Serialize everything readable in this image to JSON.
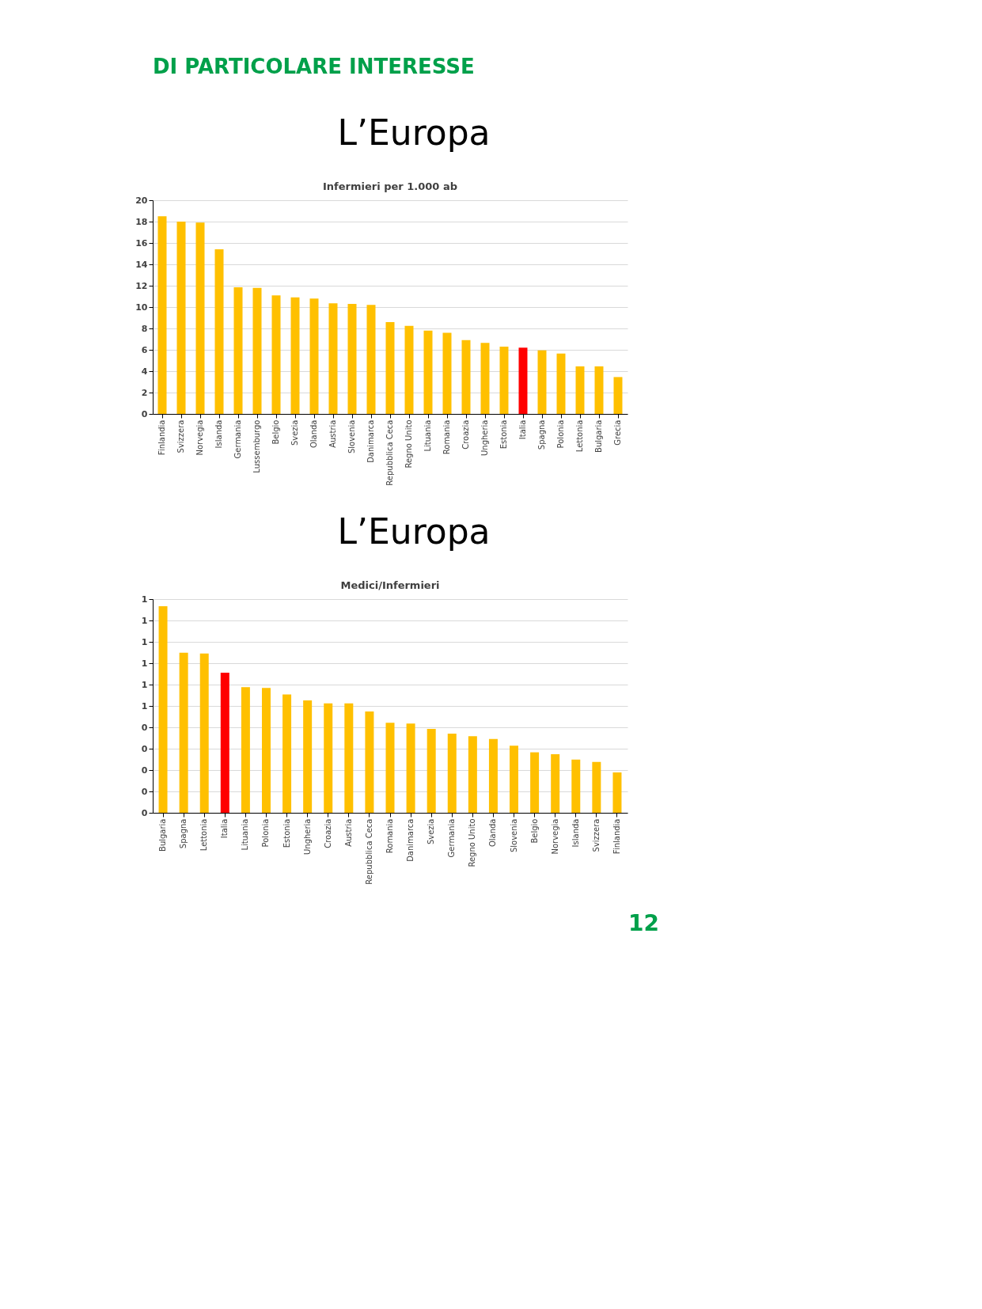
{
  "chart_data": [
    {
      "type": "bar",
      "title": "Infermieri per 1.000 ab",
      "annotations": [
        "DI PARTICOLARE INTERESSE",
        "L’Europa"
      ],
      "categories": [
        "Finlandia",
        "Svizzera",
        "Norvegia",
        "Islanda",
        "Germania",
        "Lussemburgo",
        "Belgio",
        "Svezia",
        "Olanda",
        "Austria",
        "Slovenia",
        "Danimarca",
        "Repubblica Ceca",
        "Regno Unito",
        "Lituania",
        "Romania",
        "Croazia",
        "Ungheria",
        "Estonia",
        "Italia",
        "Spagna",
        "Polonia",
        "Lettonia",
        "Bulgaria",
        "Grecia"
      ],
      "values": [
        18.5,
        18.0,
        17.9,
        15.4,
        11.85,
        11.8,
        11.1,
        10.9,
        10.8,
        10.35,
        10.3,
        10.2,
        8.6,
        8.25,
        7.8,
        7.6,
        6.9,
        6.65,
        6.3,
        6.2,
        5.95,
        5.65,
        4.45,
        4.45,
        3.45
      ],
      "colors": [
        "#ffc000",
        "#ffc000",
        "#ffc000",
        "#ffc000",
        "#ffc000",
        "#ffc000",
        "#ffc000",
        "#ffc000",
        "#ffc000",
        "#ffc000",
        "#ffc000",
        "#ffc000",
        "#ffc000",
        "#ffc000",
        "#ffc000",
        "#ffc000",
        "#ffc000",
        "#ffc000",
        "#ffc000",
        "#ff0000",
        "#ffc000",
        "#ffc000",
        "#ffc000",
        "#ffc000",
        "#ffc000"
      ],
      "ylim": [
        0,
        20
      ],
      "yticks": [
        0,
        2,
        4,
        6,
        8,
        10,
        12,
        14,
        16,
        18,
        20
      ],
      "grid": "y"
    },
    {
      "type": "bar",
      "title": "Medici/Infermieri",
      "annotations": [
        "L’Europa",
        "12"
      ],
      "categories": [
        "Bulgaria",
        "Spagna",
        "Lettonia",
        "Italia",
        "Lituania",
        "Polonia",
        "Estonia",
        "Ungheria",
        "Croazia",
        "Austria",
        "Repubblica Ceca",
        "Romania",
        "Danimarca",
        "Svezia",
        "Germania",
        "Regno Unito",
        "Olanda",
        "Slovenia",
        "Belgio",
        "Norvegia",
        "Islanda",
        "Svizzera",
        "Finlandia"
      ],
      "values": [
        0.967,
        0.749,
        0.745,
        0.656,
        0.588,
        0.584,
        0.554,
        0.526,
        0.512,
        0.512,
        0.474,
        0.421,
        0.418,
        0.393,
        0.37,
        0.358,
        0.345,
        0.314,
        0.283,
        0.274,
        0.249,
        0.238,
        0.189
      ],
      "colors": [
        "#ffc000",
        "#ffc000",
        "#ffc000",
        "#ff0000",
        "#ffc000",
        "#ffc000",
        "#ffc000",
        "#ffc000",
        "#ffc000",
        "#ffc000",
        "#ffc000",
        "#ffc000",
        "#ffc000",
        "#ffc000",
        "#ffc000",
        "#ffc000",
        "#ffc000",
        "#ffc000",
        "#ffc000",
        "#ffc000",
        "#ffc000",
        "#ffc000",
        "#ffc000"
      ],
      "ylim": [
        0,
        1.0
      ],
      "yticks": [
        0,
        {
          "value": 0.1,
          "label": "0"
        },
        {
          "value": 0.2,
          "label": "0"
        },
        {
          "value": 0.3,
          "label": "0"
        },
        {
          "value": 0.4,
          "label": "0"
        },
        {
          "value": 0.5,
          "label": "1"
        },
        {
          "value": 0.6,
          "label": "1"
        },
        {
          "value": 0.7,
          "label": "1"
        },
        {
          "value": 0.8,
          "label": "1"
        },
        {
          "value": 0.9,
          "label": "1"
        },
        {
          "value": 1.0,
          "label": "1"
        }
      ],
      "grid": "y"
    }
  ]
}
